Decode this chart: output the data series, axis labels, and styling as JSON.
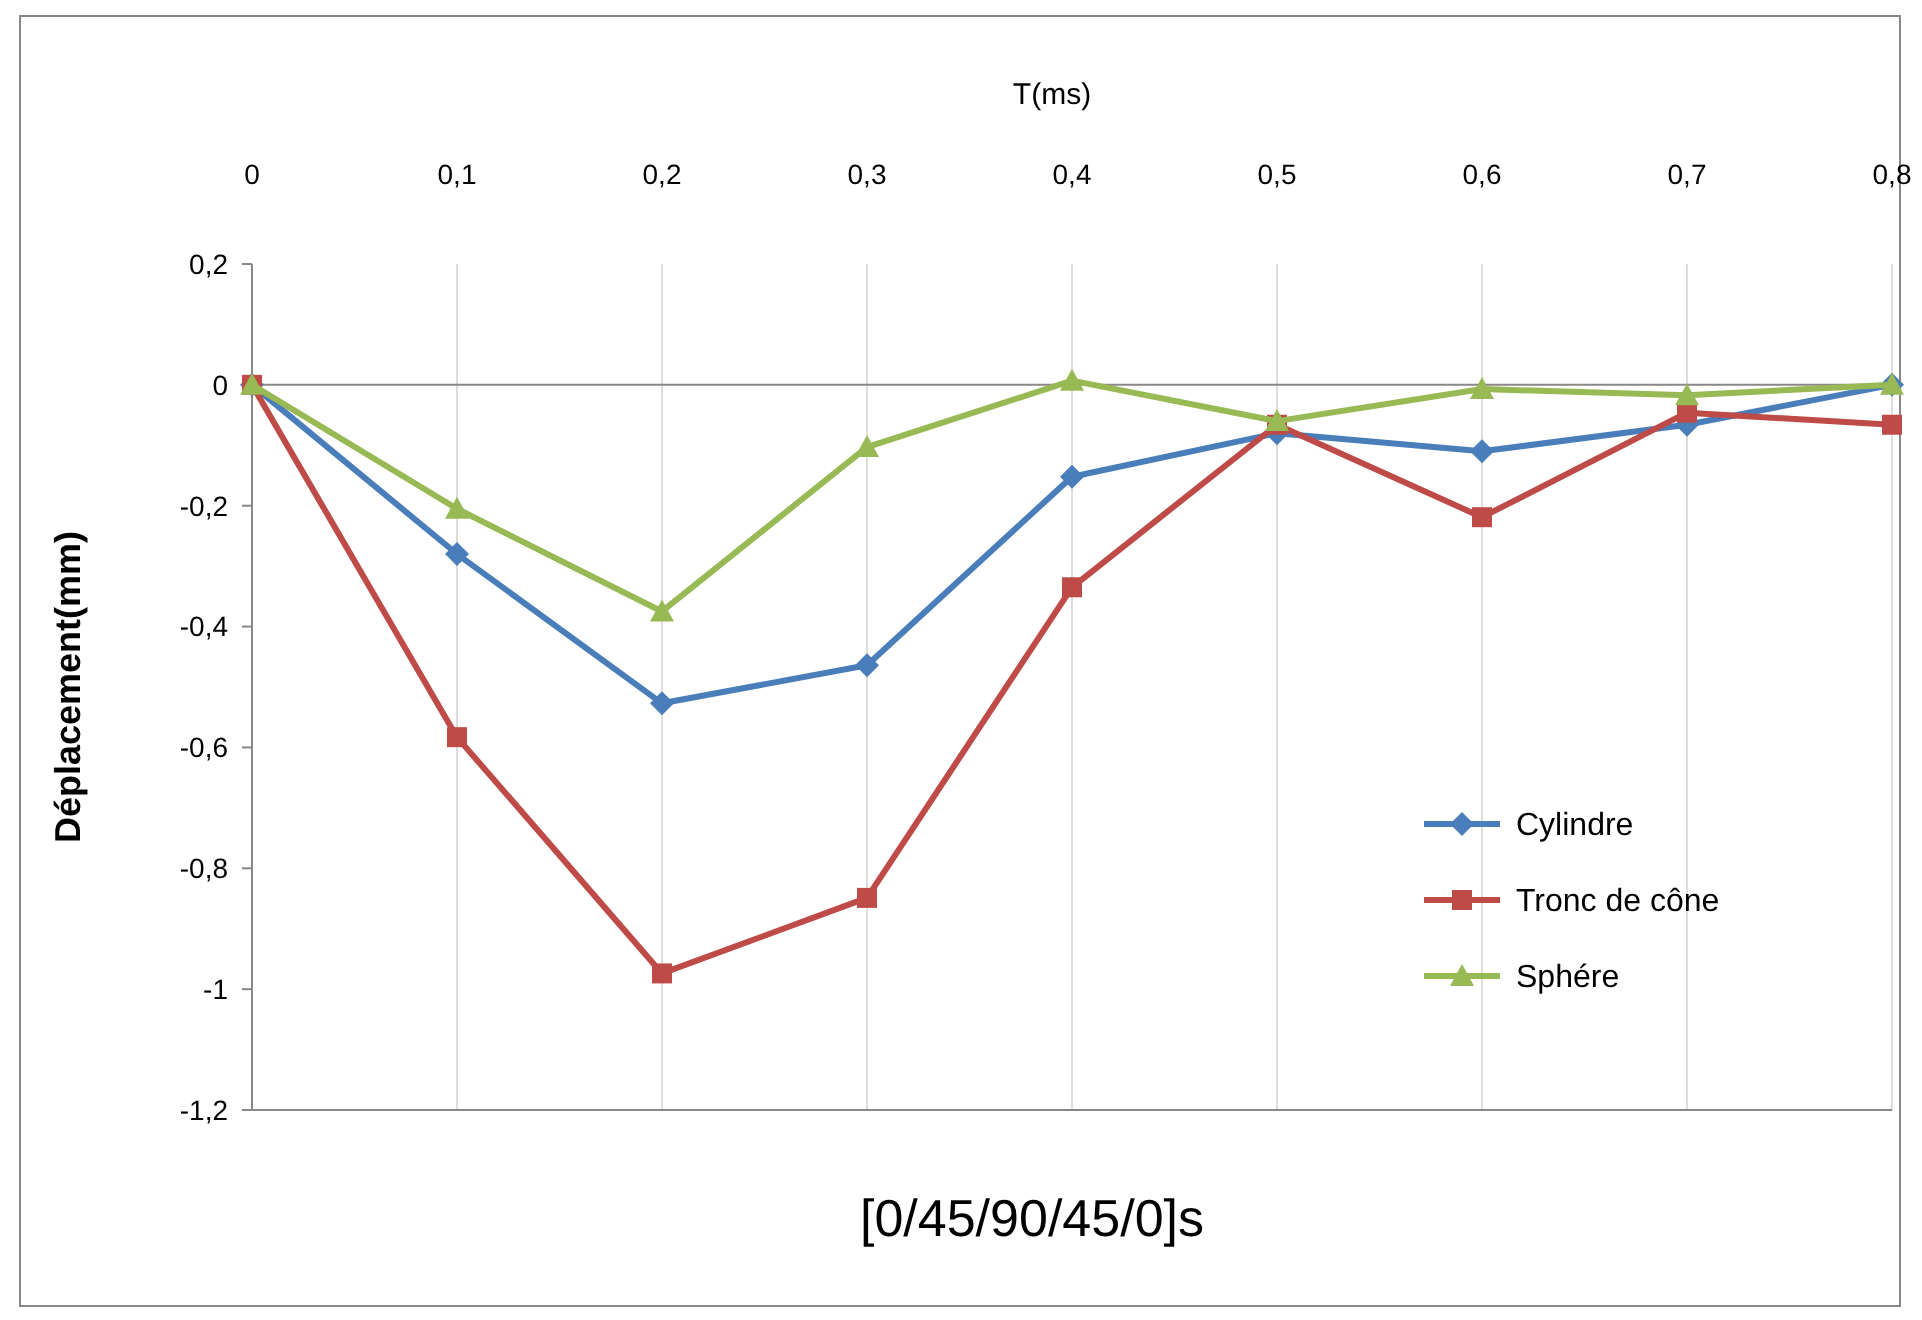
{
  "chart_data": {
    "type": "line",
    "title": "[0/45/90/45/0]s",
    "xlabel": "T(ms)",
    "ylabel": "Déplacement(mm)",
    "x": [
      0,
      0.1,
      0.2,
      0.3,
      0.4,
      0.5,
      0.6,
      0.7,
      0.8
    ],
    "series": [
      {
        "name": "Cylindre",
        "color": "#4a7ebb",
        "marker": "diamond",
        "values": [
          0,
          -0.28,
          -0.527,
          -0.464,
          -0.152,
          -0.08,
          -0.11,
          -0.066,
          0
        ]
      },
      {
        "name": "Tronc de cône",
        "color": "#be4b48",
        "marker": "square",
        "values": [
          0,
          -0.583,
          -0.974,
          -0.849,
          -0.335,
          -0.066,
          -0.219,
          -0.046,
          -0.066
        ]
      },
      {
        "name": "Sphére",
        "color": "#98b954",
        "marker": "triangle",
        "values": [
          0,
          -0.205,
          -0.375,
          -0.103,
          0.007,
          -0.06,
          -0.007,
          -0.017,
          0
        ]
      }
    ],
    "xlim": [
      0,
      0.8
    ],
    "xticks": [
      0,
      {
        "value": 0.1,
        "label": "0,1"
      },
      {
        "value": 0.2,
        "label": "0,2"
      },
      {
        "value": 0.3,
        "label": "0,3"
      },
      {
        "value": 0.4,
        "label": "0,4"
      },
      {
        "value": 0.5,
        "label": "0,5"
      },
      {
        "value": 0.6,
        "label": "0,6"
      },
      {
        "value": 0.7,
        "label": "0,7"
      },
      {
        "value": 0.8,
        "label": "0,8"
      }
    ],
    "ylim": [
      -1.2,
      0.2
    ],
    "yticks": [
      {
        "value": 0.2,
        "label": "0,2"
      },
      0,
      {
        "value": -0.2,
        "label": "-0,2"
      },
      {
        "value": -0.4,
        "label": "-0,4"
      },
      {
        "value": -0.6,
        "label": "-0,6"
      },
      {
        "value": -0.8,
        "label": "-0,8"
      },
      {
        "value": -1,
        "label": "-1"
      },
      {
        "value": -1.2,
        "label": "-1,2"
      }
    ],
    "grid": "x",
    "legend": "bottom right",
    "line_style": "solid"
  }
}
